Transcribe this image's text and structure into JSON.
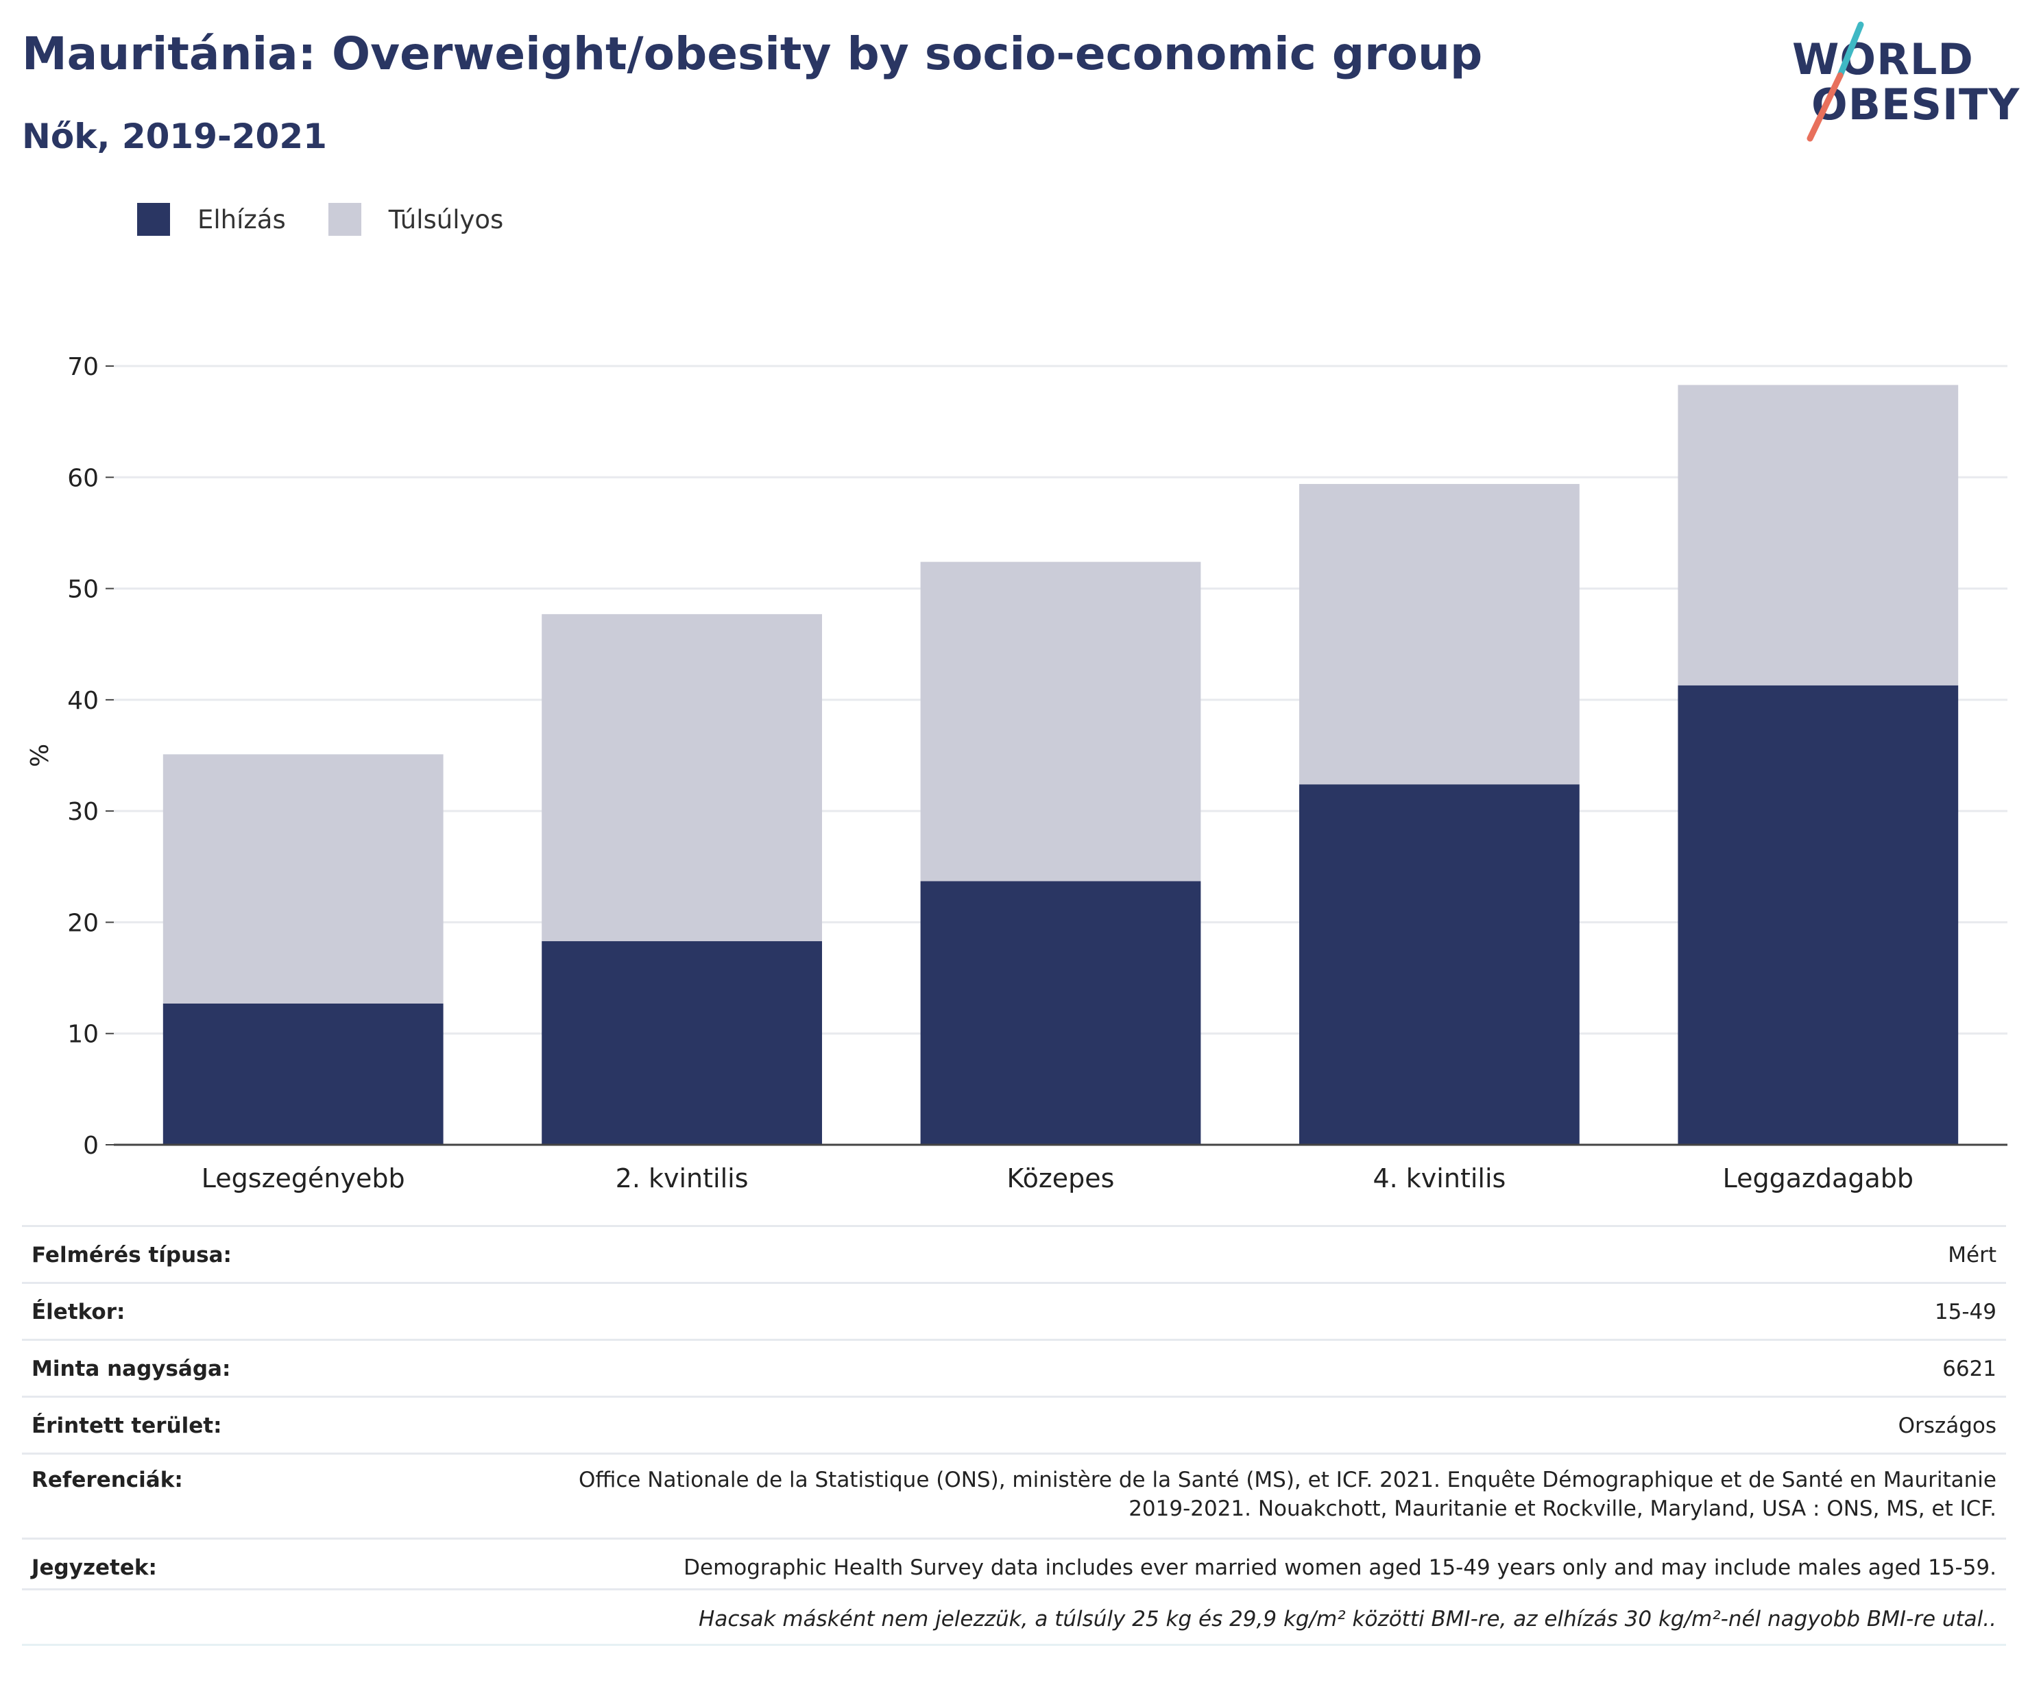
{
  "header": {
    "title": "Mauritánia: Overweight/obesity by socio-economic group",
    "subtitle": "Nők, 2019-2021"
  },
  "logo": {
    "line1": "WORLD",
    "line2": "OBESITY"
  },
  "colors": {
    "obesity": "#2a3663",
    "overweight": "#cbccd8",
    "accent_teal": "#3fb8c4",
    "accent_coral": "#e8705c"
  },
  "chart_data": {
    "type": "bar",
    "stacked": true,
    "categories": [
      "Legszegényebb",
      "2. kvintilis",
      "Közepes",
      "4. kvintilis",
      "Leggazdagabb"
    ],
    "series": [
      {
        "name": "Elhízás",
        "values": [
          12.7,
          18.3,
          23.7,
          32.4,
          41.3
        ]
      },
      {
        "name": "Túlsúlyos",
        "values": [
          22.4,
          29.4,
          28.7,
          27.0,
          27.0
        ]
      }
    ],
    "ylabel": "%",
    "xlabel": "",
    "ylim": [
      0,
      70
    ],
    "yticks": [
      0,
      10,
      20,
      30,
      40,
      50,
      60,
      70
    ],
    "grid": true,
    "legend_position": "top-left"
  },
  "info": {
    "rows": [
      {
        "label": "Felmérés típusa:",
        "value": "Mért"
      },
      {
        "label": "Életkor:",
        "value": "15-49"
      },
      {
        "label": "Minta nagysága:",
        "value": "6621"
      },
      {
        "label": "Érintett terület:",
        "value": "Országos"
      },
      {
        "label": "Referenciák:",
        "value_line1": "Office Nationale de la Statistique (ONS), ministère de la Santé (MS), et ICF. 2021. Enquête Démographique et de Santé en Mauritanie",
        "value_line2": "2019-2021. Nouakchott, Mauritanie et Rockville, Maryland, USA : ONS, MS, et ICF."
      },
      {
        "label": "Jegyzetek:",
        "value": "Demographic Health Survey data includes ever married women aged 15-49 years only and may include males aged 15-59."
      }
    ],
    "footnote": "Hacsak másként nem jelezzük, a túlsúly 25 kg és 29,9 kg/m² közötti BMI-re, az elhízás 30 kg/m²-nél nagyobb BMI-re utal.."
  }
}
